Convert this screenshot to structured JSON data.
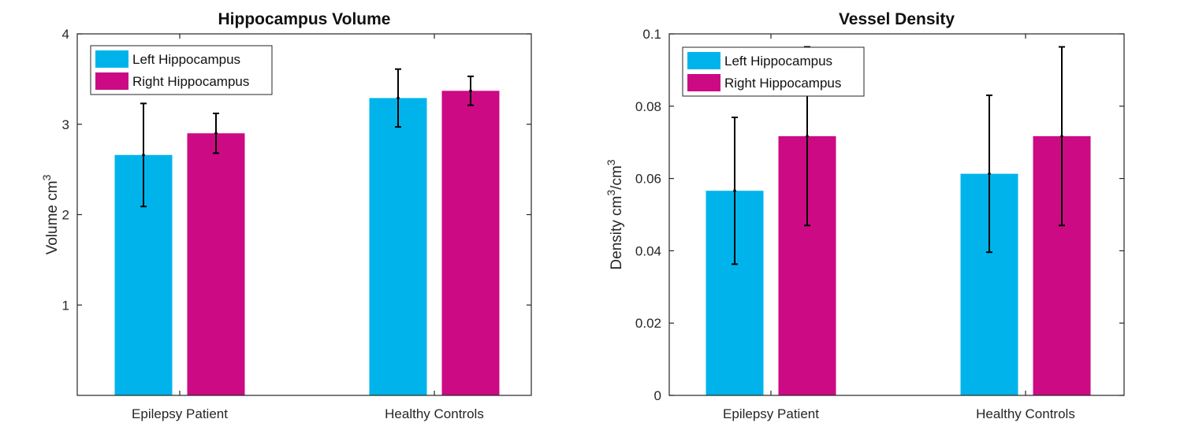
{
  "chart_data": [
    {
      "type": "bar",
      "title": "Hippocampus Volume",
      "ylabel": "Volume cm",
      "ylabel_sup": "3",
      "ylabel_tail": "",
      "categories": [
        "Epilepsy Patient",
        "Healthy Controls"
      ],
      "ylim": [
        0,
        4
      ],
      "yticks": [
        1,
        2,
        3,
        4
      ],
      "ytick_labels": [
        "1",
        "2",
        "3",
        "4"
      ],
      "legend_position": "top-left",
      "series": [
        {
          "name": "Left Hippocampus",
          "color": "#00B4EB",
          "values": [
            2.66,
            3.29
          ],
          "errors": [
            0.57,
            0.32
          ]
        },
        {
          "name": "Right Hippocampus",
          "color": "#CC0A84",
          "values": [
            2.9,
            3.37
          ],
          "errors": [
            0.22,
            0.16
          ]
        }
      ]
    },
    {
      "type": "bar",
      "title": "Vessel Density",
      "ylabel": "Density cm",
      "ylabel_sup": "3",
      "ylabel_tail": "/cm",
      "ylabel_sup2": "3",
      "categories": [
        "Epilepsy Patient",
        "Healthy Controls"
      ],
      "ylim": [
        0,
        0.1
      ],
      "yticks": [
        0,
        0.02,
        0.04,
        0.06,
        0.08,
        0.1
      ],
      "ytick_labels": [
        "0",
        "0.02",
        "0.04",
        "0.06",
        "0.08",
        "0.1"
      ],
      "legend_position": "top-left",
      "series": [
        {
          "name": "Left Hippocampus",
          "color": "#00B4EB",
          "values": [
            0.0566,
            0.0613
          ],
          "errors": [
            0.0203,
            0.0217
          ]
        },
        {
          "name": "Right Hippocampus",
          "color": "#CC0A84",
          "values": [
            0.0717,
            0.0717
          ],
          "errors": [
            0.0247,
            0.0247
          ]
        }
      ]
    }
  ]
}
